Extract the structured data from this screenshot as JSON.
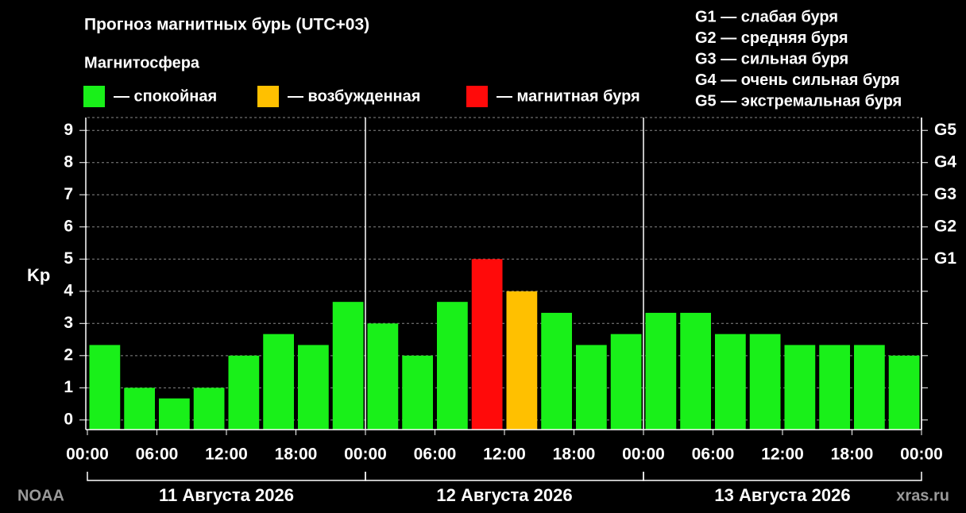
{
  "chart_data": {
    "type": "bar",
    "title": "Прогноз магнитных бурь (UTC+03)",
    "legend_title": "Магнитосфера",
    "legend": [
      {
        "label": "— спокойная",
        "color": "#19f019"
      },
      {
        "label": "— возбужденная",
        "color": "#ffc000"
      },
      {
        "label": "— магнитная буря",
        "color": "#ff0a0a"
      }
    ],
    "g_scale": [
      "G1 — слабая буря",
      "G2 — средняя буря",
      "G3 — сильная буря",
      "G4 — очень сильная буря",
      "G5 — экстремальная буря"
    ],
    "y_label": "Kp",
    "x": [
      0,
      3,
      6,
      9,
      12,
      15,
      18,
      21,
      24,
      27,
      30,
      33,
      36,
      39,
      42,
      45,
      48,
      51,
      54,
      57,
      60,
      63,
      66,
      69
    ],
    "bar_hours": 3,
    "values": [
      2.33,
      1,
      0.67,
      1,
      2,
      2.67,
      2.33,
      3.67,
      3,
      2,
      3.67,
      5,
      4,
      3.33,
      2.33,
      2.67,
      3.33,
      3.33,
      2.67,
      2.67,
      2.33,
      2.33,
      2.33,
      2
    ],
    "colors": [
      "#19f019",
      "#19f019",
      "#19f019",
      "#19f019",
      "#19f019",
      "#19f019",
      "#19f019",
      "#19f019",
      "#19f019",
      "#19f019",
      "#19f019",
      "#ff0a0a",
      "#ffc000",
      "#19f019",
      "#19f019",
      "#19f019",
      "#19f019",
      "#19f019",
      "#19f019",
      "#19f019",
      "#19f019",
      "#19f019",
      "#19f019",
      "#19f019"
    ],
    "xlim": [
      0,
      72
    ],
    "xticks": [
      {
        "value": 0,
        "label": "00:00"
      },
      {
        "value": 6,
        "label": "06:00"
      },
      {
        "value": 12,
        "label": "12:00"
      },
      {
        "value": 18,
        "label": "18:00"
      },
      {
        "value": 24,
        "label": "00:00"
      },
      {
        "value": 30,
        "label": "06:00"
      },
      {
        "value": 36,
        "label": "12:00"
      },
      {
        "value": 42,
        "label": "18:00"
      },
      {
        "value": 48,
        "label": "00:00"
      },
      {
        "value": 54,
        "label": "06:00"
      },
      {
        "value": 60,
        "label": "12:00"
      },
      {
        "value": 66,
        "label": "18:00"
      },
      {
        "value": 72,
        "label": "00:00"
      }
    ],
    "days": [
      {
        "label": "11 Августа 2026",
        "start": 0,
        "end": 24
      },
      {
        "label": "12 Августа 2026",
        "start": 24,
        "end": 48
      },
      {
        "label": "13 Августа 2026",
        "start": 48,
        "end": 72
      }
    ],
    "ylim": [
      -0.3,
      9.4
    ],
    "yticks": [
      0,
      1,
      2,
      3,
      4,
      5,
      6,
      7,
      8,
      9
    ],
    "y2lim": [
      -0.3,
      9.4
    ],
    "y2ticks": [
      {
        "value": 5,
        "label": "G1"
      },
      {
        "value": 6,
        "label": "G2"
      },
      {
        "value": 7,
        "label": "G3"
      },
      {
        "value": 8,
        "label": "G4"
      },
      {
        "value": 9,
        "label": "G5"
      }
    ],
    "grid": true,
    "source": "NOAA",
    "watermark": "xras.ru"
  }
}
